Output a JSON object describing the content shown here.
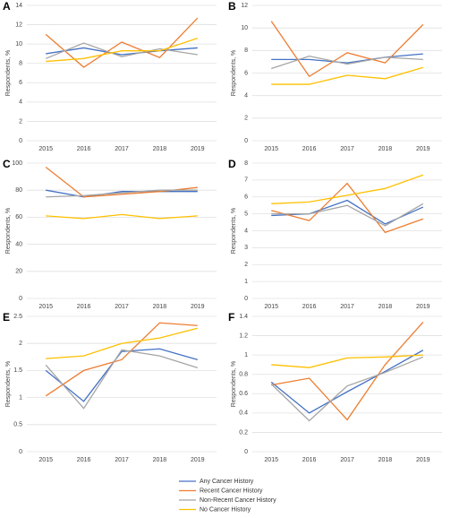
{
  "chart_data": [
    {
      "type": "line",
      "label": "A",
      "ylabel": "Respondents, %",
      "categories": [
        "2015",
        "2016",
        "2017",
        "2018",
        "2019"
      ],
      "ylim": [
        0,
        14
      ],
      "yticks": [
        0,
        2,
        4,
        6,
        8,
        10,
        12,
        14
      ],
      "grid": true,
      "series": [
        {
          "name": "Any Cancer History",
          "color": "#4472c4",
          "values": [
            9.0,
            9.6,
            8.9,
            9.3,
            9.6
          ]
        },
        {
          "name": "Recent Cancer History",
          "color": "#ed7d31",
          "values": [
            11.0,
            7.6,
            10.2,
            8.6,
            12.7
          ]
        },
        {
          "name": "Non-Recent Cancer History",
          "color": "#a5a5a5",
          "values": [
            8.5,
            10.1,
            8.7,
            9.5,
            8.9
          ]
        },
        {
          "name": "No Cancer History",
          "color": "#ffc000",
          "values": [
            8.2,
            8.5,
            9.3,
            9.3,
            10.6
          ]
        }
      ]
    },
    {
      "type": "line",
      "label": "B",
      "ylabel": "Respondents, %",
      "categories": [
        "2015",
        "2016",
        "2017",
        "2018",
        "2019"
      ],
      "ylim": [
        0,
        12
      ],
      "yticks": [
        0,
        2,
        4,
        6,
        8,
        10,
        12
      ],
      "grid": true,
      "series": [
        {
          "color": "#4472c4",
          "values": [
            7.2,
            7.2,
            6.9,
            7.4,
            7.7
          ]
        },
        {
          "color": "#ed7d31",
          "values": [
            10.6,
            5.7,
            7.8,
            6.9,
            10.3
          ]
        },
        {
          "color": "#a5a5a5",
          "values": [
            6.4,
            7.5,
            6.8,
            7.4,
            7.2
          ]
        },
        {
          "color": "#ffc000",
          "values": [
            5.0,
            5.0,
            5.8,
            5.5,
            6.5
          ]
        }
      ]
    },
    {
      "type": "line",
      "label": "C",
      "ylabel": "Respondents, %",
      "categories": [
        "2015",
        "2016",
        "2017",
        "2018",
        "2019"
      ],
      "ylim": [
        0,
        100
      ],
      "yticks": [
        0,
        20,
        40,
        60,
        80,
        100
      ],
      "grid": true,
      "series": [
        {
          "color": "#4472c4",
          "values": [
            80,
            75,
            79,
            79,
            79
          ]
        },
        {
          "color": "#ed7d31",
          "values": [
            97,
            75,
            77,
            79,
            82
          ]
        },
        {
          "color": "#a5a5a5",
          "values": [
            75,
            76,
            78,
            80,
            80
          ]
        },
        {
          "color": "#ffc000",
          "values": [
            61,
            59,
            62,
            59,
            61
          ]
        }
      ]
    },
    {
      "type": "line",
      "label": "D",
      "ylabel": "Respondents, %",
      "categories": [
        "2015",
        "2016",
        "2017",
        "2018",
        "2019"
      ],
      "ylim": [
        0,
        8
      ],
      "yticks": [
        0,
        1,
        2,
        3,
        4,
        5,
        6,
        7,
        8
      ],
      "grid": true,
      "series": [
        {
          "color": "#4472c4",
          "values": [
            4.9,
            5.0,
            5.8,
            4.4,
            5.4
          ]
        },
        {
          "color": "#ed7d31",
          "values": [
            5.2,
            4.6,
            6.8,
            3.9,
            4.7
          ]
        },
        {
          "color": "#a5a5a5",
          "values": [
            5.0,
            5.0,
            5.5,
            4.3,
            5.6
          ]
        },
        {
          "color": "#ffc000",
          "values": [
            5.6,
            5.7,
            6.1,
            6.5,
            7.3
          ]
        }
      ]
    },
    {
      "type": "line",
      "label": "E",
      "ylabel": "Respondents, %",
      "categories": [
        "2015",
        "2016",
        "2017",
        "2018",
        "2019"
      ],
      "ylim": [
        0,
        2.5
      ],
      "yticks": [
        0,
        0.5,
        1,
        1.5,
        2,
        2.5
      ],
      "grid": true,
      "series": [
        {
          "color": "#4472c4",
          "values": [
            1.5,
            0.93,
            1.85,
            1.9,
            1.7
          ]
        },
        {
          "color": "#ed7d31",
          "values": [
            1.03,
            1.5,
            1.7,
            2.38,
            2.33
          ]
        },
        {
          "color": "#a5a5a5",
          "values": [
            1.6,
            0.8,
            1.88,
            1.77,
            1.55
          ]
        },
        {
          "color": "#ffc000",
          "values": [
            1.72,
            1.77,
            2.0,
            2.1,
            2.28
          ]
        }
      ]
    },
    {
      "type": "line",
      "label": "F",
      "ylabel": "Respondents, %",
      "categories": [
        "2015",
        "2016",
        "2017",
        "2018",
        "2019"
      ],
      "ylim": [
        0,
        1.4
      ],
      "yticks": [
        0,
        0.2,
        0.4,
        0.6,
        0.8,
        1,
        1.2,
        1.4
      ],
      "grid": true,
      "series": [
        {
          "color": "#4472c4",
          "values": [
            0.72,
            0.4,
            0.62,
            0.83,
            1.05
          ]
        },
        {
          "color": "#ed7d31",
          "values": [
            0.69,
            0.76,
            0.33,
            0.9,
            1.34
          ]
        },
        {
          "color": "#a5a5a5",
          "values": [
            0.7,
            0.32,
            0.68,
            0.82,
            0.98
          ]
        },
        {
          "color": "#ffc000",
          "values": [
            0.9,
            0.87,
            0.97,
            0.98,
            1.0
          ]
        }
      ]
    }
  ]
}
